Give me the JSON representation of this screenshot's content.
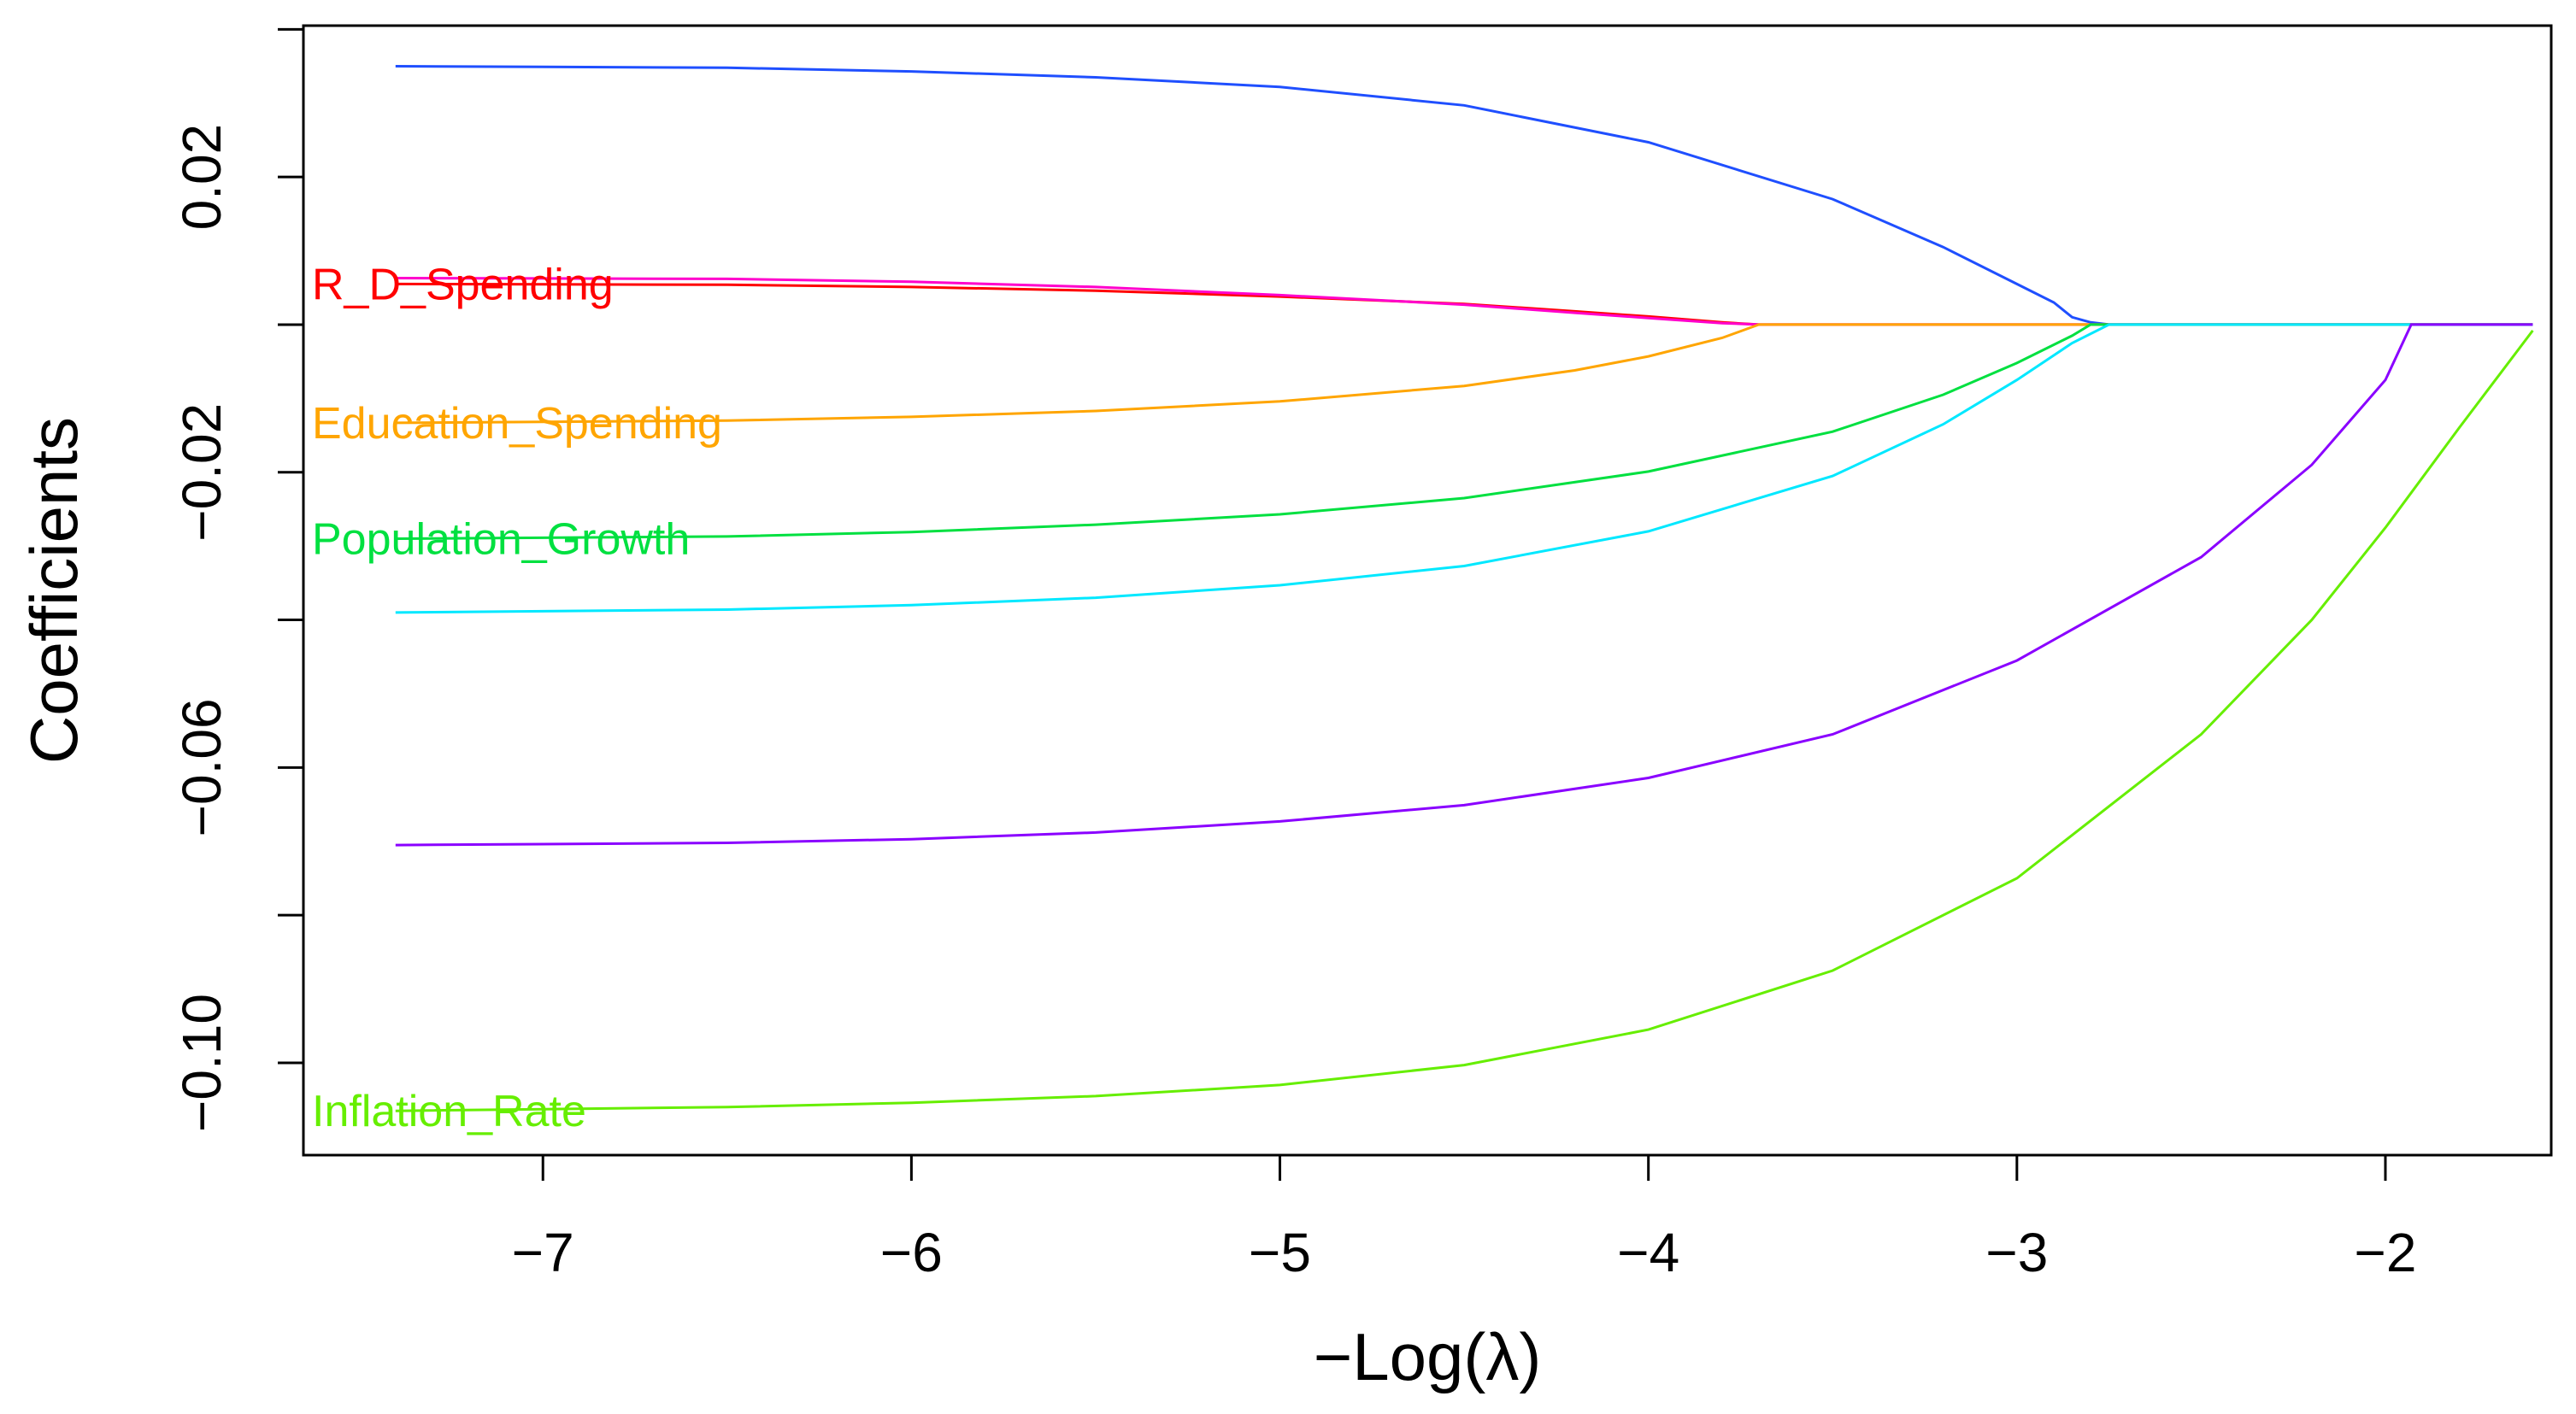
{
  "chart_data": {
    "type": "line",
    "title": "",
    "xlabel": "−Log(λ)",
    "ylabel": "Coefficients",
    "xlim": [
      -7.65,
      -1.55
    ],
    "ylim": [
      -0.1125,
      0.0405
    ],
    "xticks": [
      -7,
      -6,
      -5,
      -4,
      -3,
      -2
    ],
    "yticks": [
      0.04,
      0.02,
      0.0,
      -0.02,
      -0.04,
      -0.06,
      -0.08,
      -0.1
    ],
    "ytick_labels": [
      "",
      "0.02",
      "",
      "−0.02",
      "",
      "−0.06",
      "",
      "−0.10"
    ],
    "xtick_labels": [
      "−7",
      "−6",
      "−5",
      "−4",
      "−3",
      "−2"
    ],
    "grid": false,
    "series": [
      {
        "name": "",
        "color": "#1f4fff",
        "label_visible": false,
        "x": [
          -7.4,
          -6.5,
          -6.0,
          -5.5,
          -5.0,
          -4.5,
          -4.0,
          -3.5,
          -3.2,
          -3.0,
          -2.9,
          -2.85,
          -2.8,
          -2.75,
          -1.6
        ],
        "y": [
          0.035,
          0.0348,
          0.0343,
          0.0335,
          0.0322,
          0.0297,
          0.0247,
          0.017,
          0.0105,
          0.0055,
          0.003,
          0.001,
          0.0003,
          0.0,
          0.0
        ]
      },
      {
        "name": "R_D_Spending",
        "color": "#ff0000",
        "label_visible": true,
        "x": [
          -7.4,
          -6.5,
          -6.0,
          -5.5,
          -5.0,
          -4.5,
          -4.2,
          -4.0,
          -3.8,
          -3.7,
          -1.6
        ],
        "y": [
          0.0055,
          0.0054,
          0.0051,
          0.0046,
          0.0038,
          0.0028,
          0.0018,
          0.0011,
          0.0003,
          0.0,
          0.0
        ]
      },
      {
        "name": "",
        "color": "#ff00cc",
        "label_visible": false,
        "x": [
          -7.4,
          -6.5,
          -6.0,
          -5.5,
          -5.0,
          -4.5,
          -4.2,
          -4.0,
          -3.8,
          -3.7,
          -1.6
        ],
        "y": [
          0.0063,
          0.0062,
          0.0058,
          0.0051,
          0.004,
          0.0027,
          0.0016,
          0.0009,
          0.0002,
          0.0,
          0.0
        ]
      },
      {
        "name": "Education_Spending",
        "color": "#ffa500",
        "label_visible": true,
        "x": [
          -7.4,
          -6.5,
          -6.0,
          -5.5,
          -5.0,
          -4.5,
          -4.2,
          -4.0,
          -3.8,
          -3.7,
          -1.6
        ],
        "y": [
          -0.0133,
          -0.013,
          -0.0125,
          -0.0117,
          -0.0104,
          -0.0083,
          -0.0062,
          -0.0043,
          -0.0018,
          0.0,
          0.0
        ]
      },
      {
        "name": "Population_Growth",
        "color": "#00e040",
        "label_visible": true,
        "x": [
          -7.4,
          -6.5,
          -6.0,
          -5.5,
          -5.0,
          -4.5,
          -4.0,
          -3.5,
          -3.2,
          -3.0,
          -2.85,
          -2.8,
          -1.6
        ],
        "y": [
          -0.029,
          -0.0287,
          -0.0281,
          -0.0271,
          -0.0257,
          -0.0235,
          -0.0199,
          -0.0145,
          -0.0095,
          -0.0052,
          -0.0015,
          0.0,
          0.0
        ]
      },
      {
        "name": "",
        "color": "#00e8ff",
        "label_visible": false,
        "x": [
          -7.4,
          -6.5,
          -6.0,
          -5.5,
          -5.0,
          -4.5,
          -4.0,
          -3.5,
          -3.2,
          -3.0,
          -2.85,
          -2.75,
          -1.6
        ],
        "y": [
          -0.039,
          -0.0386,
          -0.038,
          -0.037,
          -0.0353,
          -0.0327,
          -0.028,
          -0.0205,
          -0.0135,
          -0.0075,
          -0.0025,
          0.0,
          0.0
        ]
      },
      {
        "name": "",
        "color": "#8a00ff",
        "label_visible": false,
        "x": [
          -7.4,
          -6.5,
          -6.0,
          -5.5,
          -5.0,
          -4.5,
          -4.0,
          -3.5,
          -3.0,
          -2.5,
          -2.2,
          -2.0,
          -1.93,
          -1.6
        ],
        "y": [
          -0.0705,
          -0.0702,
          -0.0697,
          -0.0688,
          -0.0673,
          -0.0651,
          -0.0614,
          -0.0555,
          -0.0455,
          -0.0315,
          -0.019,
          -0.0075,
          0.0,
          0.0
        ]
      },
      {
        "name": "Inflation_Rate",
        "color": "#66ee00",
        "label_visible": true,
        "x": [
          -7.4,
          -6.5,
          -6.0,
          -5.5,
          -5.0,
          -4.5,
          -4.0,
          -3.5,
          -3.0,
          -2.5,
          -2.2,
          -2.0,
          -1.8,
          -1.6
        ],
        "y": [
          -0.1065,
          -0.106,
          -0.1054,
          -0.1045,
          -0.103,
          -0.1003,
          -0.0955,
          -0.0875,
          -0.075,
          -0.0555,
          -0.04,
          -0.0275,
          -0.014,
          -0.0008
        ]
      }
    ]
  }
}
